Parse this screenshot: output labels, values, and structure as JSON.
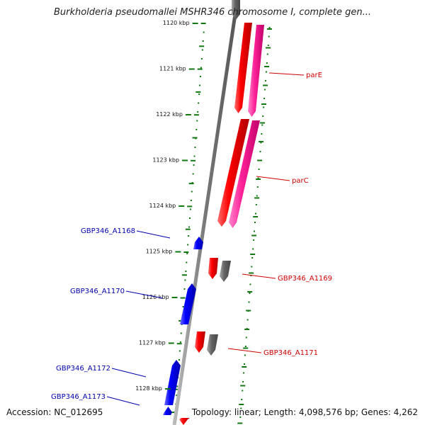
{
  "title": "Burkholderia pseudomallei MSHR346 chromosome I, complete gen...",
  "footer": {
    "accession": "Accession: NC_012695",
    "summary": "Topology: linear; Length: 4,098,576 bp; Genes: 4,262"
  },
  "colors": {
    "forward_gene": "#ff0000",
    "forward_gene_light": "#ff6060",
    "forward_cds": "#ff3399",
    "reverse_gene": "#0000ff",
    "reverse_gene_light": "#5c5cff",
    "pseudo": "#666666",
    "scale": "#117711",
    "backbone": "#888888",
    "label_forward": "#cc0000",
    "label_reverse": "#0000aa"
  },
  "kbp_ticks": [
    "1120 kbp",
    "1121 kbp",
    "1122 kbp",
    "1123 kbp",
    "1124 kbp",
    "1125 kbp",
    "1126 kbp",
    "1127 kbp",
    "1128 kbp"
  ],
  "genes_forward": [
    {
      "label": "parE"
    },
    {
      "label": "parC"
    },
    {
      "label": "GBP346_A1169"
    },
    {
      "label": "GBP346_A1171"
    }
  ],
  "genes_reverse": [
    {
      "label": "GBP346_A1168"
    },
    {
      "label": "GBP346_A1170"
    },
    {
      "label": "GBP346_A1172"
    },
    {
      "label": "GBP346_A1173"
    }
  ]
}
